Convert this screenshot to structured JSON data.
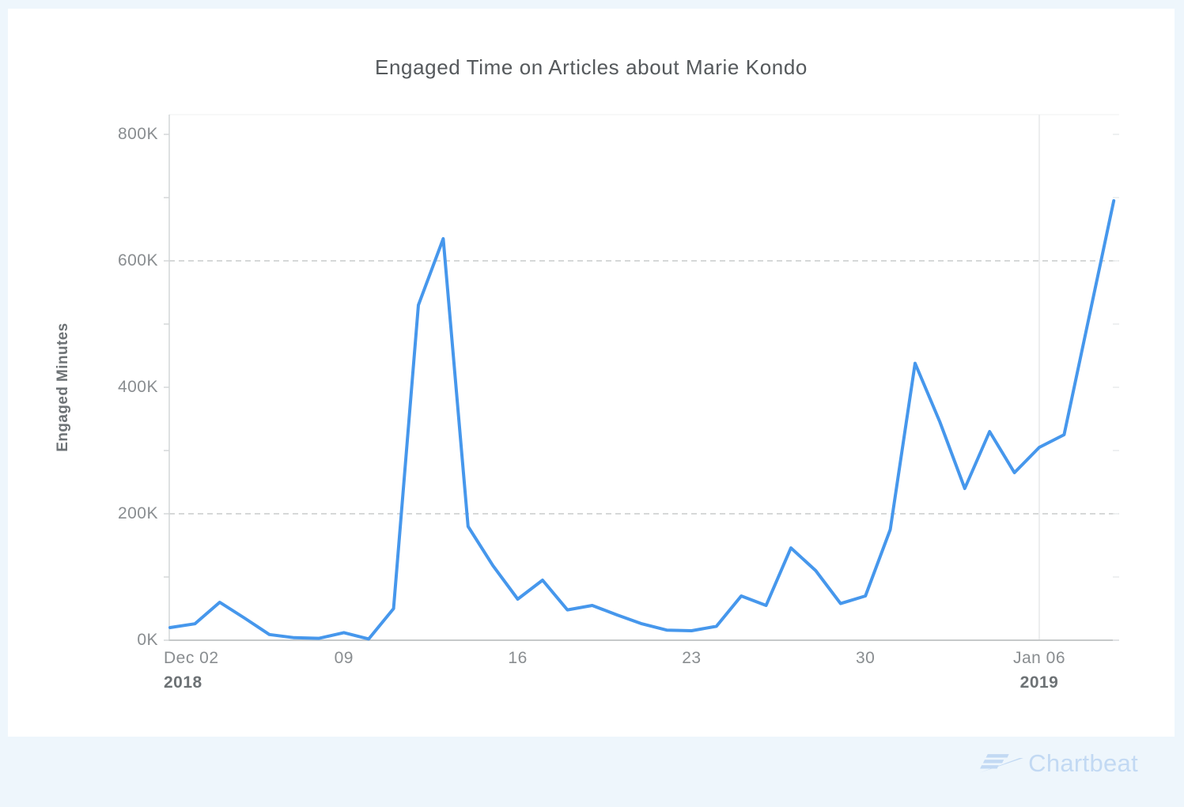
{
  "page": {
    "background_color": "#eef6fc",
    "card_color": "#ffffff"
  },
  "chart": {
    "title": "Engaged Time on Articles about Marie Kondo",
    "ylabel": "Engaged Minutes"
  },
  "chart_data": {
    "type": "line",
    "title": "Engaged Time on Articles about Marie Kondo",
    "xlabel": "",
    "ylabel": "Engaged Minutes",
    "series_name": "Engaged Minutes",
    "series_color": "#4697ec",
    "x": [
      "Dec 02",
      "Dec 03",
      "Dec 04",
      "Dec 05",
      "Dec 06",
      "Dec 07",
      "Dec 08",
      "Dec 09",
      "Dec 10",
      "Dec 11",
      "Dec 12",
      "Dec 13",
      "Dec 14",
      "Dec 15",
      "Dec 16",
      "Dec 17",
      "Dec 18",
      "Dec 19",
      "Dec 20",
      "Dec 21",
      "Dec 22",
      "Dec 23",
      "Dec 24",
      "Dec 25",
      "Dec 26",
      "Dec 27",
      "Dec 28",
      "Dec 29",
      "Dec 30",
      "Dec 31",
      "Jan 01",
      "Jan 02",
      "Jan 03",
      "Jan 04",
      "Jan 05",
      "Jan 06",
      "Jan 07",
      "Jan 08",
      "Jan 09"
    ],
    "values": [
      20000,
      26000,
      60000,
      35000,
      9000,
      4000,
      3000,
      12000,
      2000,
      50000,
      530000,
      635000,
      180000,
      118000,
      65000,
      95000,
      48000,
      55000,
      40000,
      26000,
      16000,
      15000,
      22000,
      70000,
      55000,
      146000,
      110000,
      58000,
      70000,
      175000,
      438000,
      345000,
      240000,
      330000,
      265000,
      305000,
      325000,
      510000,
      695000
    ],
    "ylim": [
      0,
      830000
    ],
    "yticks": [
      {
        "label": "0K",
        "value": 0
      },
      {
        "label": "200K",
        "value": 200000
      },
      {
        "label": "400K",
        "value": 400000
      },
      {
        "label": "600K",
        "value": 600000
      },
      {
        "label": "800K",
        "value": 800000
      }
    ],
    "minor_ytick_step": 100000,
    "gridlines_y": [
      200000,
      600000
    ],
    "grid_style": "dashed",
    "x_ticks": [
      {
        "label": "Dec 02",
        "year": "2018",
        "day": 0,
        "align": "left"
      },
      {
        "label": "09",
        "day": 7,
        "align": "center"
      },
      {
        "label": "16",
        "day": 14,
        "align": "center"
      },
      {
        "label": "23",
        "day": 21,
        "align": "center"
      },
      {
        "label": "30",
        "day": 28,
        "align": "center"
      },
      {
        "label": "Jan 06",
        "year": "2019",
        "day": 35,
        "align": "center"
      }
    ],
    "year_divider_day": 35,
    "legend": "none"
  },
  "branding": {
    "name": "Chartbeat",
    "color": "#c2d9f3"
  }
}
